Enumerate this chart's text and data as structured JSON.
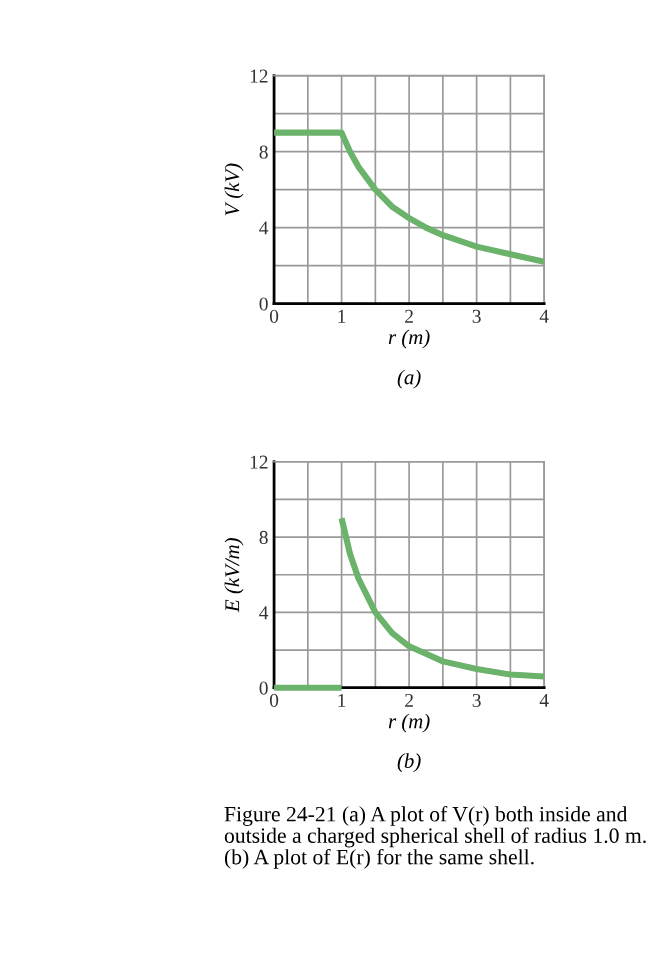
{
  "chart_data": [
    {
      "type": "line",
      "xlabel": "r (m)",
      "ylabel": "V (kV)",
      "annotations": [
        "(a)"
      ],
      "series": [
        {
          "color": "#6bb26b",
          "x": [
            0,
            1,
            1.125,
            1.25,
            1.5,
            1.75,
            2,
            2.25,
            2.5,
            3,
            3.5,
            4
          ],
          "values": [
            9,
            9,
            8,
            7.2,
            6,
            5.1,
            4.5,
            4,
            3.6,
            3,
            2.6,
            2.2
          ]
        }
      ],
      "xlim": [
        0,
        4
      ],
      "ylim": [
        0,
        12
      ],
      "xticks": [
        0,
        {
          "value": 0.5,
          "label": null
        },
        1,
        {
          "value": 1.5,
          "label": null
        },
        2,
        {
          "value": 2.5,
          "label": null
        },
        3,
        {
          "value": 3.5,
          "label": null
        },
        4
      ],
      "yticks": [
        0,
        {
          "value": 2,
          "label": null
        },
        4,
        {
          "value": 6,
          "label": null
        },
        8,
        {
          "value": 10,
          "label": null
        },
        12
      ],
      "grid": true,
      "line_style": "solid",
      "marker": "none"
    },
    {
      "type": "line",
      "xlabel": "r (m)",
      "ylabel": "E (kV/m)",
      "annotations": [
        "(b)",
        "Figure 24-21 (a) A plot of V(r) both inside and outside a charged spherical shell of radius 1.0 m. (b) A plot of E(r) for the same shell."
      ],
      "series": [
        {
          "color": "#6bb26b",
          "x": [
            0,
            1
          ],
          "values": [
            0,
            0
          ]
        },
        {
          "color": "#6bb26b",
          "x": [
            1,
            1.125,
            1.25,
            1.5,
            1.75,
            2,
            2.25,
            2.5,
            3,
            3.5,
            4
          ],
          "values": [
            9,
            7.1,
            5.8,
            4,
            2.9,
            2.2,
            1.8,
            1.4,
            1,
            0.7,
            0.6
          ]
        }
      ],
      "xlim": [
        0,
        4
      ],
      "ylim": [
        0,
        12
      ],
      "xticks": [
        0,
        {
          "value": 0.5,
          "label": null
        },
        1,
        {
          "value": 1.5,
          "label": null
        },
        2,
        {
          "value": 2.5,
          "label": null
        },
        3,
        {
          "value": 3.5,
          "label": null
        },
        4
      ],
      "yticks": [
        0,
        {
          "value": 2,
          "label": null
        },
        4,
        {
          "value": 6,
          "label": null
        },
        8,
        {
          "value": 10,
          "label": null
        },
        12
      ],
      "grid": true,
      "line_style": "solid",
      "marker": "none"
    }
  ]
}
